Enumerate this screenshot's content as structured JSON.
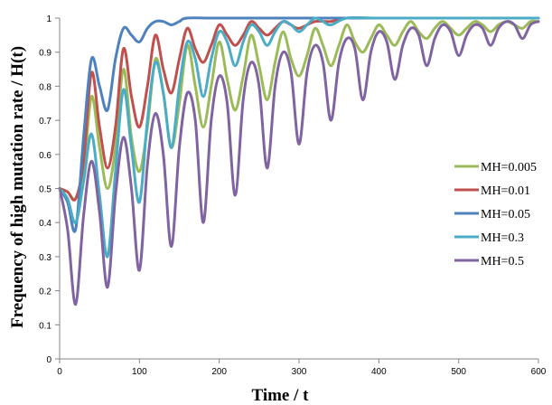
{
  "chart_data": {
    "type": "line",
    "xlabel": "Time  /  t",
    "ylabel": "Frequency of high mutation rate  /  H(t)",
    "xlim": [
      0,
      600
    ],
    "ylim": [
      0,
      1
    ],
    "xticks": [
      "0",
      "100",
      "200",
      "300",
      "400",
      "500",
      "600"
    ],
    "yticks": [
      "0",
      "0.1",
      "0.2",
      "0.3",
      "0.4",
      "0.5",
      "0.6",
      "0.7",
      "0.8",
      "0.9",
      "1"
    ],
    "grid": false,
    "legend_position": "right",
    "series": [
      {
        "name": "MH=0.005",
        "color": "#9bbb59",
        "points": [
          [
            0,
            0.5
          ],
          [
            10,
            0.49
          ],
          [
            20,
            0.47
          ],
          [
            30,
            0.55
          ],
          [
            40,
            0.77
          ],
          [
            50,
            0.62
          ],
          [
            60,
            0.5
          ],
          [
            70,
            0.62
          ],
          [
            80,
            0.85
          ],
          [
            90,
            0.65
          ],
          [
            100,
            0.55
          ],
          [
            110,
            0.68
          ],
          [
            120,
            0.88
          ],
          [
            130,
            0.78
          ],
          [
            140,
            0.62
          ],
          [
            150,
            0.75
          ],
          [
            160,
            0.92
          ],
          [
            170,
            0.8
          ],
          [
            180,
            0.68
          ],
          [
            190,
            0.8
          ],
          [
            200,
            0.93
          ],
          [
            210,
            0.82
          ],
          [
            220,
            0.73
          ],
          [
            230,
            0.83
          ],
          [
            240,
            0.95
          ],
          [
            250,
            0.86
          ],
          [
            260,
            0.76
          ],
          [
            270,
            0.87
          ],
          [
            280,
            0.96
          ],
          [
            290,
            0.88
          ],
          [
            300,
            0.83
          ],
          [
            310,
            0.89
          ],
          [
            320,
            0.97
          ],
          [
            330,
            0.92
          ],
          [
            340,
            0.86
          ],
          [
            350,
            0.92
          ],
          [
            360,
            0.98
          ],
          [
            370,
            0.93
          ],
          [
            380,
            0.9
          ],
          [
            390,
            0.94
          ],
          [
            400,
            0.98
          ],
          [
            410,
            0.95
          ],
          [
            420,
            0.92
          ],
          [
            430,
            0.96
          ],
          [
            440,
            0.99
          ],
          [
            450,
            0.96
          ],
          [
            460,
            0.94
          ],
          [
            470,
            0.97
          ],
          [
            480,
            0.99
          ],
          [
            490,
            0.97
          ],
          [
            500,
            0.95
          ],
          [
            510,
            0.97
          ],
          [
            520,
            0.99
          ],
          [
            530,
            0.98
          ],
          [
            540,
            0.96
          ],
          [
            550,
            0.98
          ],
          [
            560,
            0.99
          ],
          [
            570,
            0.98
          ],
          [
            580,
            0.97
          ],
          [
            590,
            0.99
          ],
          [
            600,
            0.99
          ]
        ]
      },
      {
        "name": "MH=0.01",
        "color": "#c0504d",
        "points": [
          [
            0,
            0.5
          ],
          [
            10,
            0.49
          ],
          [
            20,
            0.47
          ],
          [
            30,
            0.58
          ],
          [
            40,
            0.84
          ],
          [
            50,
            0.68
          ],
          [
            60,
            0.56
          ],
          [
            70,
            0.68
          ],
          [
            80,
            0.91
          ],
          [
            90,
            0.77
          ],
          [
            100,
            0.68
          ],
          [
            110,
            0.8
          ],
          [
            120,
            0.95
          ],
          [
            130,
            0.85
          ],
          [
            140,
            0.78
          ],
          [
            150,
            0.88
          ],
          [
            160,
            0.97
          ],
          [
            170,
            0.91
          ],
          [
            180,
            0.87
          ],
          [
            190,
            0.92
          ],
          [
            200,
            0.98
          ],
          [
            210,
            0.95
          ],
          [
            220,
            0.92
          ],
          [
            230,
            0.95
          ],
          [
            240,
            0.99
          ],
          [
            250,
            0.97
          ],
          [
            260,
            0.95
          ],
          [
            270,
            0.97
          ],
          [
            280,
            0.99
          ],
          [
            290,
            0.98
          ],
          [
            300,
            0.97
          ],
          [
            320,
            0.99
          ],
          [
            340,
            0.99
          ],
          [
            360,
            1.0
          ],
          [
            400,
            1.0
          ],
          [
            500,
            1.0
          ],
          [
            600,
            1.0
          ]
        ]
      },
      {
        "name": "MH=0.05",
        "color": "#4f81bd",
        "points": [
          [
            0,
            0.5
          ],
          [
            10,
            0.46
          ],
          [
            20,
            0.38
          ],
          [
            30,
            0.65
          ],
          [
            40,
            0.88
          ],
          [
            50,
            0.8
          ],
          [
            60,
            0.73
          ],
          [
            70,
            0.88
          ],
          [
            80,
            0.97
          ],
          [
            90,
            0.95
          ],
          [
            100,
            0.93
          ],
          [
            110,
            0.97
          ],
          [
            120,
            0.99
          ],
          [
            130,
            0.99
          ],
          [
            140,
            0.98
          ],
          [
            150,
            0.99
          ],
          [
            160,
            1.0
          ],
          [
            200,
            1.0
          ],
          [
            300,
            1.0
          ],
          [
            400,
            1.0
          ],
          [
            500,
            1.0
          ],
          [
            600,
            1.0
          ]
        ]
      },
      {
        "name": "MH=0.3",
        "color": "#4bacc6",
        "points": [
          [
            0,
            0.5
          ],
          [
            10,
            0.47
          ],
          [
            20,
            0.4
          ],
          [
            30,
            0.52
          ],
          [
            40,
            0.66
          ],
          [
            50,
            0.48
          ],
          [
            60,
            0.3
          ],
          [
            70,
            0.55
          ],
          [
            80,
            0.79
          ],
          [
            90,
            0.62
          ],
          [
            100,
            0.46
          ],
          [
            110,
            0.7
          ],
          [
            120,
            0.87
          ],
          [
            130,
            0.78
          ],
          [
            140,
            0.62
          ],
          [
            150,
            0.8
          ],
          [
            160,
            0.93
          ],
          [
            170,
            0.88
          ],
          [
            180,
            0.77
          ],
          [
            190,
            0.88
          ],
          [
            200,
            0.96
          ],
          [
            210,
            0.93
          ],
          [
            220,
            0.86
          ],
          [
            230,
            0.93
          ],
          [
            240,
            0.98
          ],
          [
            250,
            0.96
          ],
          [
            260,
            0.92
          ],
          [
            270,
            0.96
          ],
          [
            280,
            0.99
          ],
          [
            290,
            0.98
          ],
          [
            300,
            0.96
          ],
          [
            310,
            0.98
          ],
          [
            320,
            1.0
          ],
          [
            330,
            0.99
          ],
          [
            340,
            0.98
          ],
          [
            360,
            1.0
          ],
          [
            400,
            1.0
          ],
          [
            500,
            1.0
          ],
          [
            600,
            1.0
          ]
        ]
      },
      {
        "name": "MH=0.5",
        "color": "#8064a2",
        "points": [
          [
            0,
            0.5
          ],
          [
            10,
            0.38
          ],
          [
            20,
            0.16
          ],
          [
            30,
            0.42
          ],
          [
            40,
            0.58
          ],
          [
            50,
            0.43
          ],
          [
            60,
            0.21
          ],
          [
            70,
            0.48
          ],
          [
            80,
            0.65
          ],
          [
            90,
            0.5
          ],
          [
            100,
            0.26
          ],
          [
            110,
            0.57
          ],
          [
            120,
            0.72
          ],
          [
            130,
            0.6
          ],
          [
            140,
            0.33
          ],
          [
            150,
            0.62
          ],
          [
            160,
            0.78
          ],
          [
            170,
            0.7
          ],
          [
            180,
            0.4
          ],
          [
            190,
            0.7
          ],
          [
            200,
            0.83
          ],
          [
            210,
            0.75
          ],
          [
            220,
            0.48
          ],
          [
            230,
            0.76
          ],
          [
            240,
            0.87
          ],
          [
            250,
            0.8
          ],
          [
            260,
            0.56
          ],
          [
            270,
            0.8
          ],
          [
            280,
            0.9
          ],
          [
            290,
            0.84
          ],
          [
            300,
            0.63
          ],
          [
            310,
            0.84
          ],
          [
            320,
            0.92
          ],
          [
            330,
            0.87
          ],
          [
            340,
            0.7
          ],
          [
            350,
            0.87
          ],
          [
            360,
            0.94
          ],
          [
            370,
            0.91
          ],
          [
            380,
            0.76
          ],
          [
            390,
            0.9
          ],
          [
            400,
            0.96
          ],
          [
            410,
            0.93
          ],
          [
            420,
            0.82
          ],
          [
            430,
            0.92
          ],
          [
            440,
            0.97
          ],
          [
            450,
            0.95
          ],
          [
            460,
            0.86
          ],
          [
            470,
            0.94
          ],
          [
            480,
            0.98
          ],
          [
            490,
            0.96
          ],
          [
            500,
            0.89
          ],
          [
            510,
            0.95
          ],
          [
            520,
            0.98
          ],
          [
            530,
            0.97
          ],
          [
            540,
            0.92
          ],
          [
            550,
            0.97
          ],
          [
            560,
            0.99
          ],
          [
            570,
            0.98
          ],
          [
            580,
            0.94
          ],
          [
            590,
            0.98
          ],
          [
            600,
            0.99
          ]
        ]
      }
    ]
  }
}
